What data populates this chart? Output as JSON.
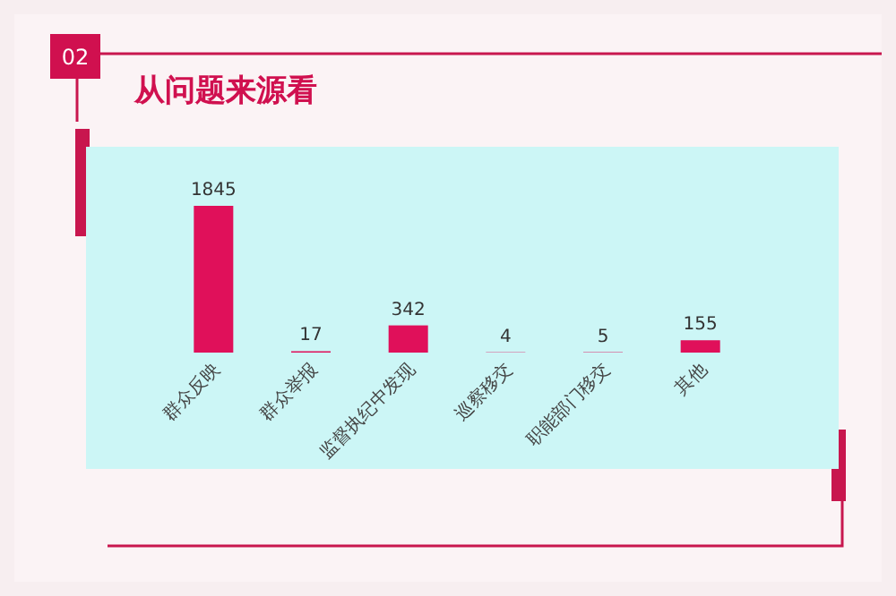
{
  "chart_data": {
    "type": "bar",
    "title": "从问题来源看",
    "annotations": [
      "02"
    ],
    "categories": [
      "群众反映",
      "群众举报",
      "监督执纪中发现",
      "巡察移交",
      "职能部门移交",
      "其他"
    ],
    "values": [
      1845,
      17,
      342,
      4,
      5,
      155
    ],
    "color": "#e0105a",
    "data_labels": true
  }
}
